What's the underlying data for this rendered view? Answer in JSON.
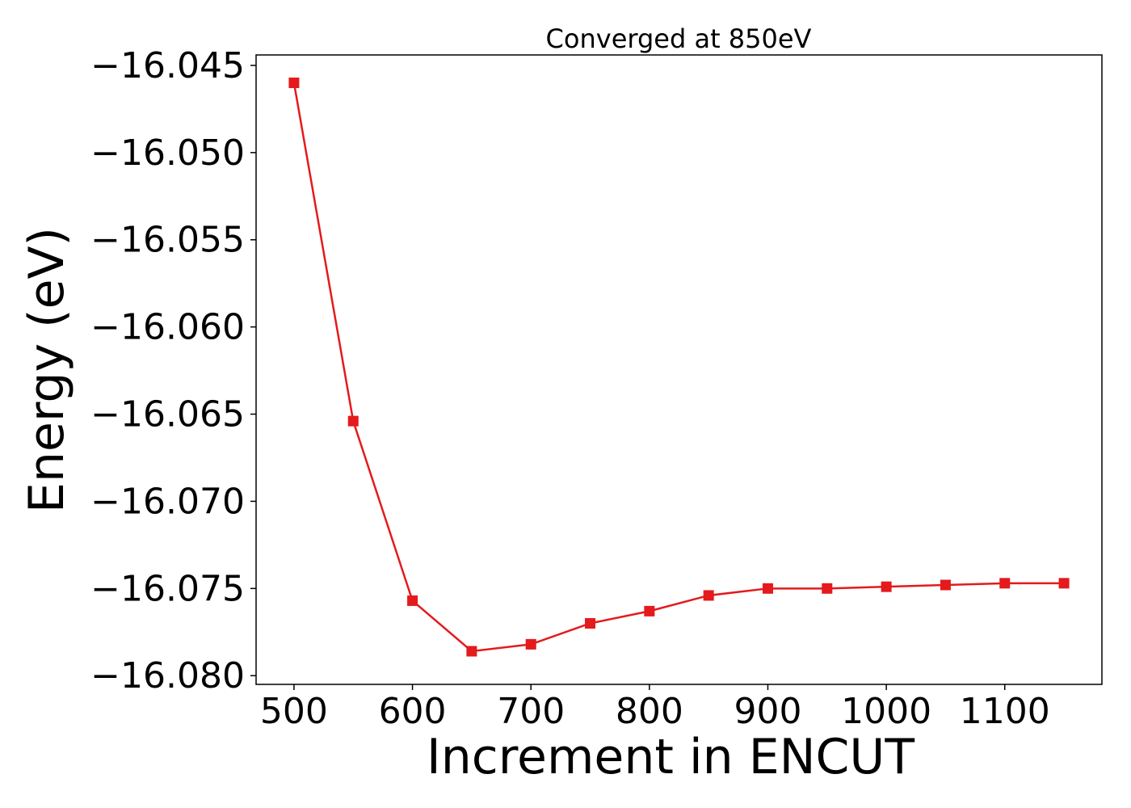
{
  "chart_data": {
    "type": "line",
    "title": "Converged at 850eV",
    "xlabel": "Increment in ENCUT",
    "ylabel": "Energy (eV)",
    "x": [
      500,
      550,
      600,
      650,
      700,
      750,
      800,
      850,
      900,
      950,
      1000,
      1050,
      1100,
      1150
    ],
    "series": [
      {
        "values": [
          -16.046,
          -16.0654,
          -16.0757,
          -16.0786,
          -16.0782,
          -16.077,
          -16.0763,
          -16.0754,
          -16.075,
          -16.075,
          -16.0749,
          -16.0748,
          -16.0747,
          -16.0747
        ],
        "color": "#e41a1c",
        "marker": "square"
      }
    ],
    "xticks": [
      500,
      600,
      700,
      800,
      900,
      1000,
      1100
    ],
    "xtick_labels": [
      "500",
      "600",
      "700",
      "800",
      "900",
      "1000",
      "1100"
    ],
    "yticks": [
      -16.08,
      -16.075,
      -16.07,
      -16.065,
      -16.06,
      -16.055,
      -16.05,
      -16.045
    ],
    "ytick_labels": [
      "−16.080",
      "−16.075",
      "−16.070",
      "−16.065",
      "−16.060",
      "−16.055",
      "−16.050",
      "−16.045"
    ],
    "xlim": [
      468,
      1182
    ],
    "ylim": [
      -16.0805,
      -16.0444
    ],
    "grid": false,
    "legend": "none"
  }
}
